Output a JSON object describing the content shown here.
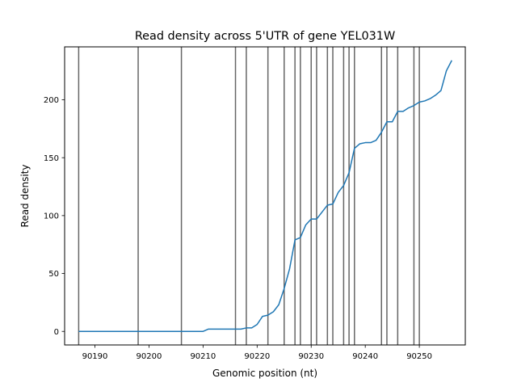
{
  "chart_data": {
    "type": "line",
    "title": "Read density across 5'UTR of gene YEL031W",
    "xlabel": "Genomic position (nt)",
    "ylabel": "Read density",
    "xlim": [
      90184.4,
      90258.5
    ],
    "ylim": [
      -11.7,
      245.7
    ],
    "xticks": [
      90190,
      90200,
      90210,
      90220,
      90230,
      90240,
      90250
    ],
    "yticks": [
      0,
      50,
      100,
      150,
      200
    ],
    "xtick_labels": [
      "90190",
      "90200",
      "90210",
      "90220",
      "90230",
      "90240",
      "90250"
    ],
    "ytick_labels": [
      "0",
      "50",
      "100",
      "150",
      "200"
    ],
    "grid": false,
    "line_color": "#1f77b4",
    "vline_color": "#666666",
    "vlines": [
      90187,
      90198,
      90206,
      90216,
      90218,
      90222,
      90225,
      90227,
      90228,
      90230,
      90231,
      90233,
      90234,
      90236,
      90237,
      90238,
      90243,
      90244,
      90246,
      90249,
      90250
    ],
    "series": [
      {
        "x": [
          90187,
          90188,
          90189,
          90190,
          90191,
          90192,
          90193,
          90194,
          90195,
          90196,
          90197,
          90198,
          90199,
          90200,
          90201,
          90202,
          90203,
          90204,
          90205,
          90206,
          90207,
          90208,
          90209,
          90210,
          90211,
          90212,
          90213,
          90214,
          90215,
          90216,
          90217,
          90218,
          90219,
          90220,
          90221,
          90222,
          90223,
          90224,
          90225,
          90226,
          90227,
          90228,
          90229,
          90230,
          90231,
          90232,
          90233,
          90234,
          90235,
          90236,
          90237,
          90238,
          90239,
          90240,
          90241,
          90242,
          90243,
          90244,
          90245,
          90246,
          90247,
          90248,
          90249,
          90250,
          90251,
          90252,
          90253,
          90254,
          90255,
          90256
        ],
        "y": [
          0,
          0,
          0,
          0,
          0,
          0,
          0,
          0,
          0,
          0,
          0,
          0,
          0,
          0,
          0,
          0,
          0,
          0,
          0,
          0,
          0,
          0,
          0,
          0,
          2,
          2,
          2,
          2,
          2,
          2,
          2,
          3,
          3,
          6,
          13,
          14,
          17,
          23,
          37,
          54,
          79,
          81,
          92,
          97,
          97,
          103,
          109,
          110,
          120,
          126,
          137,
          158,
          162,
          163,
          163,
          165,
          172,
          181,
          181,
          190,
          190,
          193,
          195,
          198,
          199,
          201,
          204,
          208,
          225,
          234
        ]
      }
    ]
  }
}
